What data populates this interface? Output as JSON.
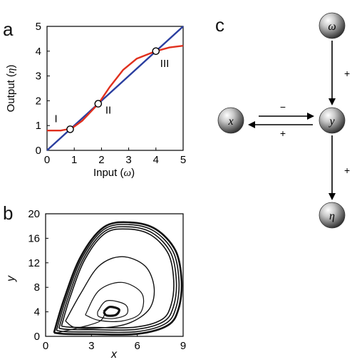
{
  "panels": {
    "a": "a",
    "b": "b",
    "c": "c"
  },
  "panel_a": {
    "xlabel_prefix": "Input (",
    "xlabel_symbol": "ω",
    "xlabel_suffix": ")",
    "ylabel_prefix": "Output (",
    "ylabel_symbol": "η",
    "ylabel_suffix": ")",
    "x_ticks": [
      "0",
      "1",
      "2",
      "3",
      "4",
      "5"
    ],
    "y_ticks": [
      "0",
      "1",
      "2",
      "3",
      "4",
      "5"
    ],
    "point_labels": [
      "I",
      "II",
      "III"
    ]
  },
  "panel_b": {
    "xlabel": "x",
    "ylabel": "y",
    "x_ticks": [
      "0",
      "3",
      "6",
      "9"
    ],
    "y_ticks": [
      "0",
      "4",
      "8",
      "12",
      "16",
      "20"
    ]
  },
  "panel_c": {
    "nodes": {
      "omega": "ω",
      "x": "x",
      "y": "y",
      "eta": "η"
    },
    "signs": {
      "omega_to_y": "+",
      "x_to_y": "−",
      "y_to_x": "+",
      "y_to_eta": "+"
    }
  },
  "colors": {
    "identity_line": "#2b3fa0",
    "response_curve": "#e0301e"
  },
  "chart_data": [
    {
      "type": "line",
      "xlim": [
        0,
        5
      ],
      "ylim": [
        0,
        5
      ],
      "series": [
        {
          "values": [
            [
              0,
              0
            ],
            [
              5,
              5
            ]
          ]
        },
        {
          "values": [
            [
              0,
              0.8
            ],
            [
              0.5,
              0.8
            ],
            [
              0.9,
              0.88
            ],
            [
              1.3,
              1.2
            ],
            [
              1.6,
              1.55
            ],
            [
              1.9,
              1.9
            ],
            [
              2.3,
              2.55
            ],
            [
              2.8,
              3.25
            ],
            [
              3.3,
              3.7
            ],
            [
              4.0,
              4.0
            ],
            [
              4.5,
              4.15
            ],
            [
              5.0,
              4.22
            ]
          ]
        }
      ],
      "points": [
        [
          0.85,
          0.85
        ],
        [
          1.88,
          1.88
        ],
        [
          4.0,
          4.0
        ]
      ]
    },
    {
      "type": "line",
      "xlim": [
        0,
        9
      ],
      "ylim": [
        0,
        20
      ],
      "series": [
        {
          "values": [
            [
              0.55,
              0.6
            ],
            [
              1.2,
              6
            ],
            [
              2.3,
              13
            ],
            [
              3.8,
              17.8
            ],
            [
              5.5,
              18.6
            ],
            [
              7.2,
              17.5
            ],
            [
              8.5,
              14
            ],
            [
              8.9,
              9
            ],
            [
              8.7,
              4.5
            ],
            [
              8,
              1.8
            ],
            [
              6,
              0.4
            ],
            [
              3,
              0.35
            ],
            [
              1.2,
              0.4
            ],
            [
              0.55,
              0.6
            ]
          ]
        },
        {
          "values": [
            [
              1.3,
              2.5
            ],
            [
              2.3,
              7
            ],
            [
              3.5,
              11.5
            ],
            [
              5,
              13
            ],
            [
              6.5,
              11.5
            ],
            [
              7.1,
              8
            ],
            [
              6.8,
              4.5
            ],
            [
              5.5,
              2.2
            ],
            [
              3.8,
              1.4
            ],
            [
              2,
              1.4
            ],
            [
              1.3,
              2.5
            ]
          ]
        },
        {
          "values": [
            [
              2.6,
              3.5
            ],
            [
              3.5,
              7.5
            ],
            [
              5,
              8.8
            ],
            [
              6.3,
              7
            ],
            [
              6.2,
              3.8
            ],
            [
              5,
              2.5
            ],
            [
              3.5,
              2.6
            ],
            [
              2.6,
              3.5
            ]
          ]
        },
        {
          "values": [
            [
              3.4,
              4
            ],
            [
              4,
              5.8
            ],
            [
              5.2,
              5.2
            ],
            [
              5.3,
              3.6
            ],
            [
              4.4,
              2.9
            ],
            [
              3.5,
              3.2
            ],
            [
              3.4,
              4
            ]
          ]
        },
        {
          "values": [
            [
              3.8,
              4
            ],
            [
              4.2,
              4.8
            ],
            [
              4.8,
              4.4
            ],
            [
              4.6,
              3.5
            ],
            [
              4,
              3.4
            ],
            [
              3.8,
              4
            ]
          ]
        },
        {
          "values": [
            [
              0.6,
              0.5
            ],
            [
              2,
              1.3
            ],
            [
              3.5,
              2.4
            ],
            [
              3.9,
              3.8
            ]
          ]
        }
      ]
    }
  ]
}
